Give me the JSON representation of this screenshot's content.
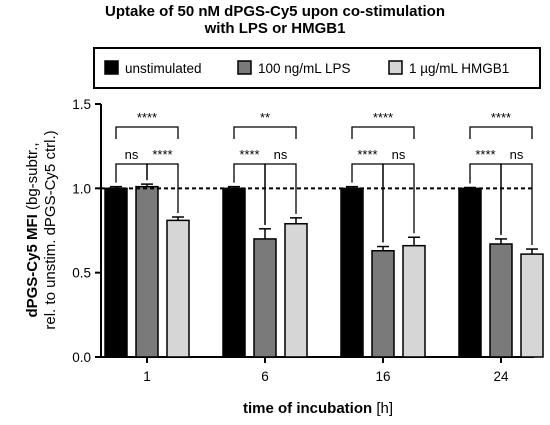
{
  "chart_data": {
    "type": "bar",
    "title_line1": "Uptake of 50 nM dPGS-Cy5 upon co-stimulation",
    "title_line2": "with LPS or HMGB1",
    "xlabel_bold": "time of incubation",
    "xlabel_unit": " [h]",
    "ylabel_line1_bold": "dPGS-Cy5 MFI",
    "ylabel_line1_rest": " (bg-subtr.,",
    "ylabel_line2": "rel. to unstim. dPGS-Cy5 ctrl.)",
    "categories": [
      "1",
      "6",
      "16",
      "24"
    ],
    "ylim": [
      0,
      1.5
    ],
    "yticks": [
      "0.0",
      "0.5",
      "1.0",
      "1.5"
    ],
    "reference_line": 1.0,
    "series": [
      {
        "name": "unstimulated",
        "color": "#000000",
        "values": [
          1.0,
          1.0,
          1.0,
          1.0
        ],
        "errors": [
          0.01,
          0.01,
          0.01,
          0.005
        ]
      },
      {
        "name": "100 ng/mL LPS",
        "color": "#7a7a7a",
        "values": [
          1.01,
          0.7,
          0.63,
          0.67
        ],
        "errors": [
          0.015,
          0.06,
          0.025,
          0.03
        ]
      },
      {
        "name": "1 µg/mL HMGB1",
        "color": "#d6d6d6",
        "values": [
          0.81,
          0.79,
          0.66,
          0.61
        ],
        "errors": [
          0.02,
          0.035,
          0.05,
          0.03
        ]
      }
    ],
    "significance": [
      {
        "group": 0,
        "pairs": [
          [
            "unstimulated",
            "100 ng/mL LPS",
            "ns"
          ],
          [
            "100 ng/mL LPS",
            "1 µg/mL HMGB1",
            "****"
          ],
          [
            "unstimulated",
            "1 µg/mL HMGB1",
            "****"
          ]
        ]
      },
      {
        "group": 1,
        "pairs": [
          [
            "unstimulated",
            "100 ng/mL LPS",
            "****"
          ],
          [
            "100 ng/mL LPS",
            "1 µg/mL HMGB1",
            "ns"
          ],
          [
            "unstimulated",
            "1 µg/mL HMGB1",
            "**"
          ]
        ]
      },
      {
        "group": 2,
        "pairs": [
          [
            "unstimulated",
            "100 ng/mL LPS",
            "****"
          ],
          [
            "100 ng/mL LPS",
            "1 µg/mL HMGB1",
            "ns"
          ],
          [
            "unstimulated",
            "1 µg/mL HMGB1",
            "****"
          ]
        ]
      },
      {
        "group": 3,
        "pairs": [
          [
            "unstimulated",
            "100 ng/mL LPS",
            "****"
          ],
          [
            "100 ng/mL LPS",
            "1 µg/mL HMGB1",
            "ns"
          ],
          [
            "unstimulated",
            "1 µg/mL HMGB1",
            "****"
          ]
        ]
      }
    ],
    "legend_position": "top, boxed"
  }
}
